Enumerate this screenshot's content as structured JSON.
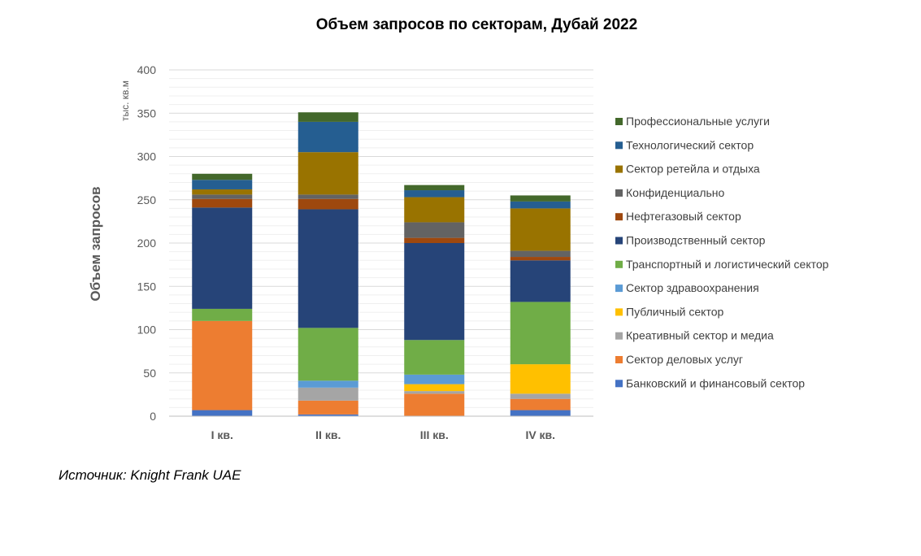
{
  "chart_data": {
    "type": "bar",
    "stacked": true,
    "title": "Объем запросов по секторам, Дубай 2022",
    "ylabel": "Объем запросов",
    "yunit": "тыс. кв.м",
    "xlabel": "",
    "ylim": [
      0,
      400
    ],
    "yticks": [
      "0",
      "50",
      "100",
      "150",
      "200",
      "250",
      "300",
      "350",
      "400"
    ],
    "grid": true,
    "legend_position": "right",
    "categories": [
      "I кв.",
      "II кв.",
      "III кв.",
      "IV кв."
    ],
    "series": [
      {
        "name": "Банковский и финансовый сектор",
        "color": "#4472C4",
        "values": [
          7,
          2,
          0,
          7
        ]
      },
      {
        "name": "Сектор деловых услуг",
        "color": "#ED7D31",
        "values": [
          103,
          16,
          26,
          13
        ]
      },
      {
        "name": "Креативный сектор и медиа",
        "color": "#A5A5A5",
        "values": [
          0,
          15,
          3,
          6
        ]
      },
      {
        "name": "Публичный сектор",
        "color": "#FFC000",
        "values": [
          0,
          0,
          8,
          34
        ]
      },
      {
        "name": "Сектор здравоохранения",
        "color": "#5B9BD5",
        "values": [
          0,
          8,
          11,
          0
        ]
      },
      {
        "name": "Транспортный и логистический сектор",
        "color": "#70AD47",
        "values": [
          14,
          61,
          40,
          72
        ]
      },
      {
        "name": "Производственный сектор",
        "color": "#264478",
        "values": [
          117,
          137,
          112,
          48
        ]
      },
      {
        "name": "Нефтегазовый сектор",
        "color": "#9E480E",
        "values": [
          10,
          12,
          6,
          4
        ]
      },
      {
        "name": "Конфиденциально",
        "color": "#636363",
        "values": [
          5,
          5,
          18,
          7
        ]
      },
      {
        "name": "Сектор ретейла и отдыха",
        "color": "#997300",
        "values": [
          6,
          49,
          29,
          49
        ]
      },
      {
        "name": "Технологический сектор",
        "color": "#255E91",
        "values": [
          11,
          35,
          8,
          8
        ]
      },
      {
        "name": "Профессиональные услуги",
        "color": "#43682B",
        "values": [
          7,
          11,
          6,
          7
        ]
      }
    ]
  },
  "source": "Источник: Knight Frank UAE"
}
